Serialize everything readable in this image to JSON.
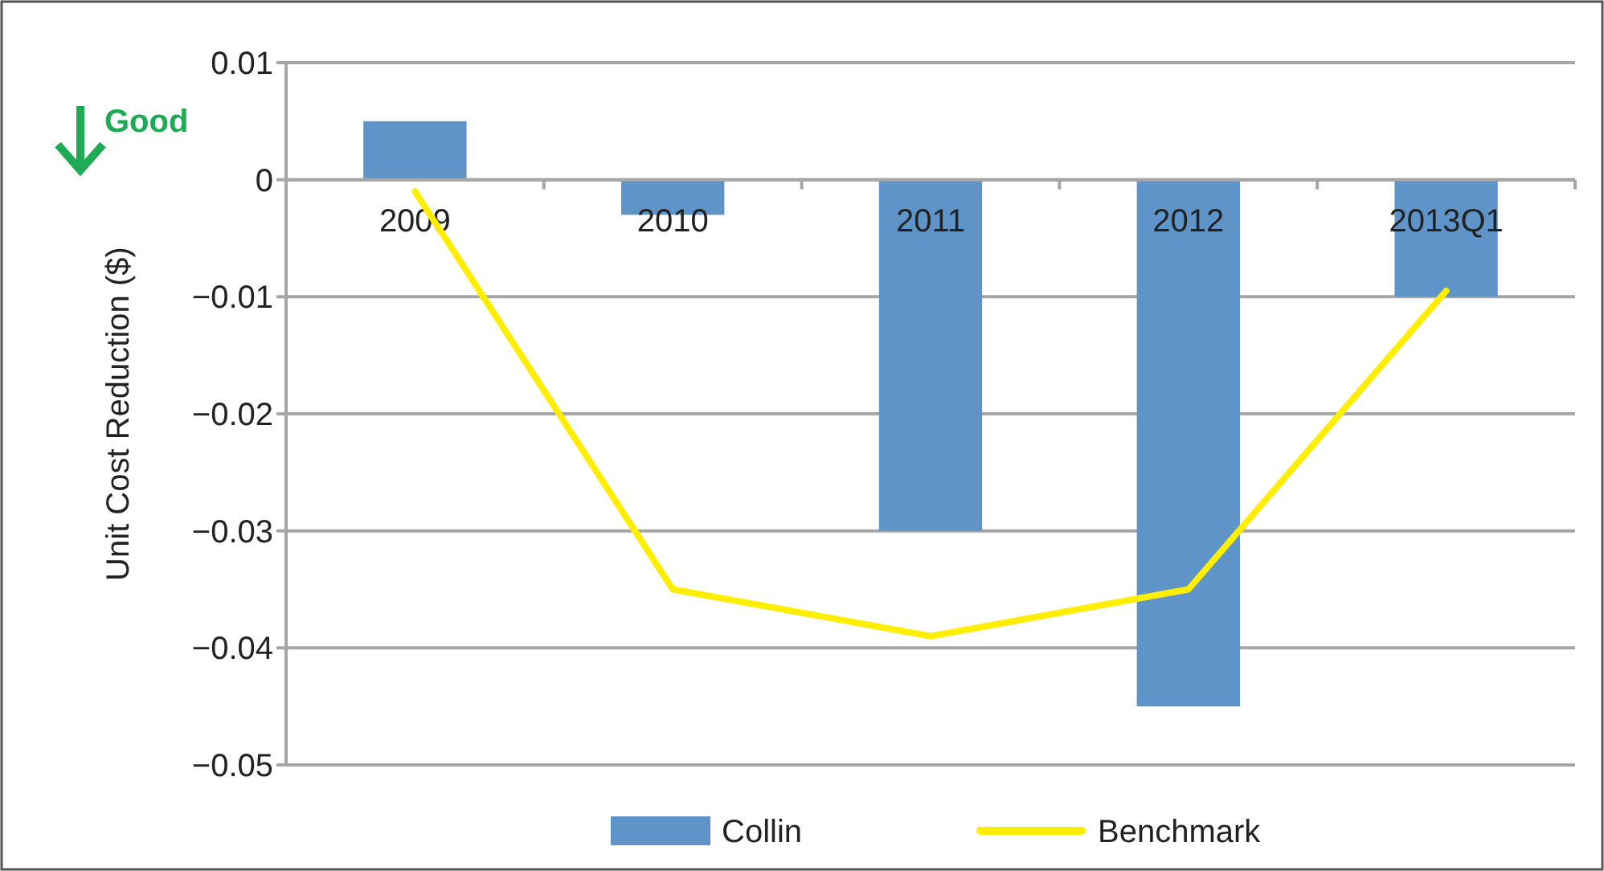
{
  "chart_data": {
    "type": "bar",
    "ylabel": "Unit Cost Reduction ($)",
    "categories": [
      "2009",
      "2010",
      "2011",
      "2012",
      "2013Q1"
    ],
    "series": [
      {
        "name": "Collin",
        "color": "#5f94c9",
        "values": [
          0.005,
          -0.003,
          -0.03,
          -0.045,
          -0.01
        ]
      },
      {
        "name": "Benchmark",
        "type": "line",
        "color": "#ffee00",
        "values": [
          -0.001,
          -0.035,
          -0.039,
          -0.035,
          -0.0095
        ]
      }
    ],
    "ylim": [
      -0.05,
      0.01
    ],
    "yticks": [
      0.01,
      0,
      {
        "value": -0.01,
        "label": "−0.01"
      },
      {
        "value": -0.02,
        "label": "−0.02"
      },
      {
        "value": -0.03,
        "label": "−0.03"
      },
      {
        "value": -0.04,
        "label": "−0.04"
      },
      {
        "value": -0.05,
        "label": "−0.05"
      }
    ],
    "grid": "y",
    "legend": "bottom",
    "marker": "none",
    "line_style": "solid",
    "annotations": [
      "Good"
    ]
  }
}
